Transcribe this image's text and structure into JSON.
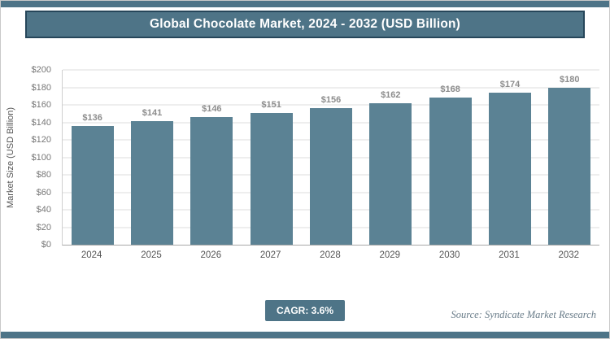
{
  "header": {
    "title": "Global Chocolate Market, 2024 - 2032 (USD Billion)"
  },
  "chart_data": {
    "type": "bar",
    "title": "Global Chocolate Market, 2024 - 2032 (USD Billion)",
    "categories": [
      "2024",
      "2025",
      "2026",
      "2027",
      "2028",
      "2029",
      "2030",
      "2031",
      "2032"
    ],
    "values": [
      136,
      141,
      146,
      151,
      156,
      162,
      168,
      174,
      180
    ],
    "value_prefix": "$",
    "xlabel": "",
    "ylabel": "Market Size (USD Billion)",
    "ylim": [
      0,
      200
    ],
    "ytick_step": 20,
    "ytick_prefix": "$",
    "grid": true,
    "legend": "none"
  },
  "footer": {
    "cagr_label": "CAGR: 3.6%",
    "source": "Source: Syndicate Market Research"
  },
  "colors": {
    "accent": "#4e7487",
    "bar": "#5b8294",
    "grid": "#dcdcdc",
    "title_border": "#26465a"
  }
}
